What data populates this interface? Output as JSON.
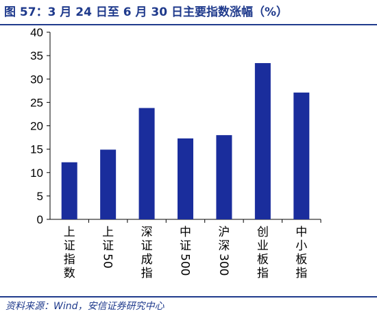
{
  "page": {
    "title": "图 57：3 月 24 日至 6 月 30 日主要指数涨幅（%）",
    "source": "资料来源：Wind，安信证券研究中心"
  },
  "colors": {
    "accent": "#1f3a8c",
    "bar": "#1a2d9c"
  },
  "chart_data": {
    "type": "bar",
    "title": "",
    "xlabel": "",
    "ylabel": "",
    "categories": [
      "上证指数",
      "上证50",
      "深证成指",
      "中证500",
      "沪深300",
      "创业板指",
      "中小板指"
    ],
    "values": [
      12.2,
      14.9,
      23.8,
      17.3,
      18.0,
      33.4,
      27.1
    ],
    "ylim": [
      0,
      40
    ],
    "yticks": [
      "0",
      "5",
      "10",
      "15",
      "20",
      "25",
      "30",
      "35",
      "40"
    ],
    "grid": false,
    "legend": "none"
  }
}
